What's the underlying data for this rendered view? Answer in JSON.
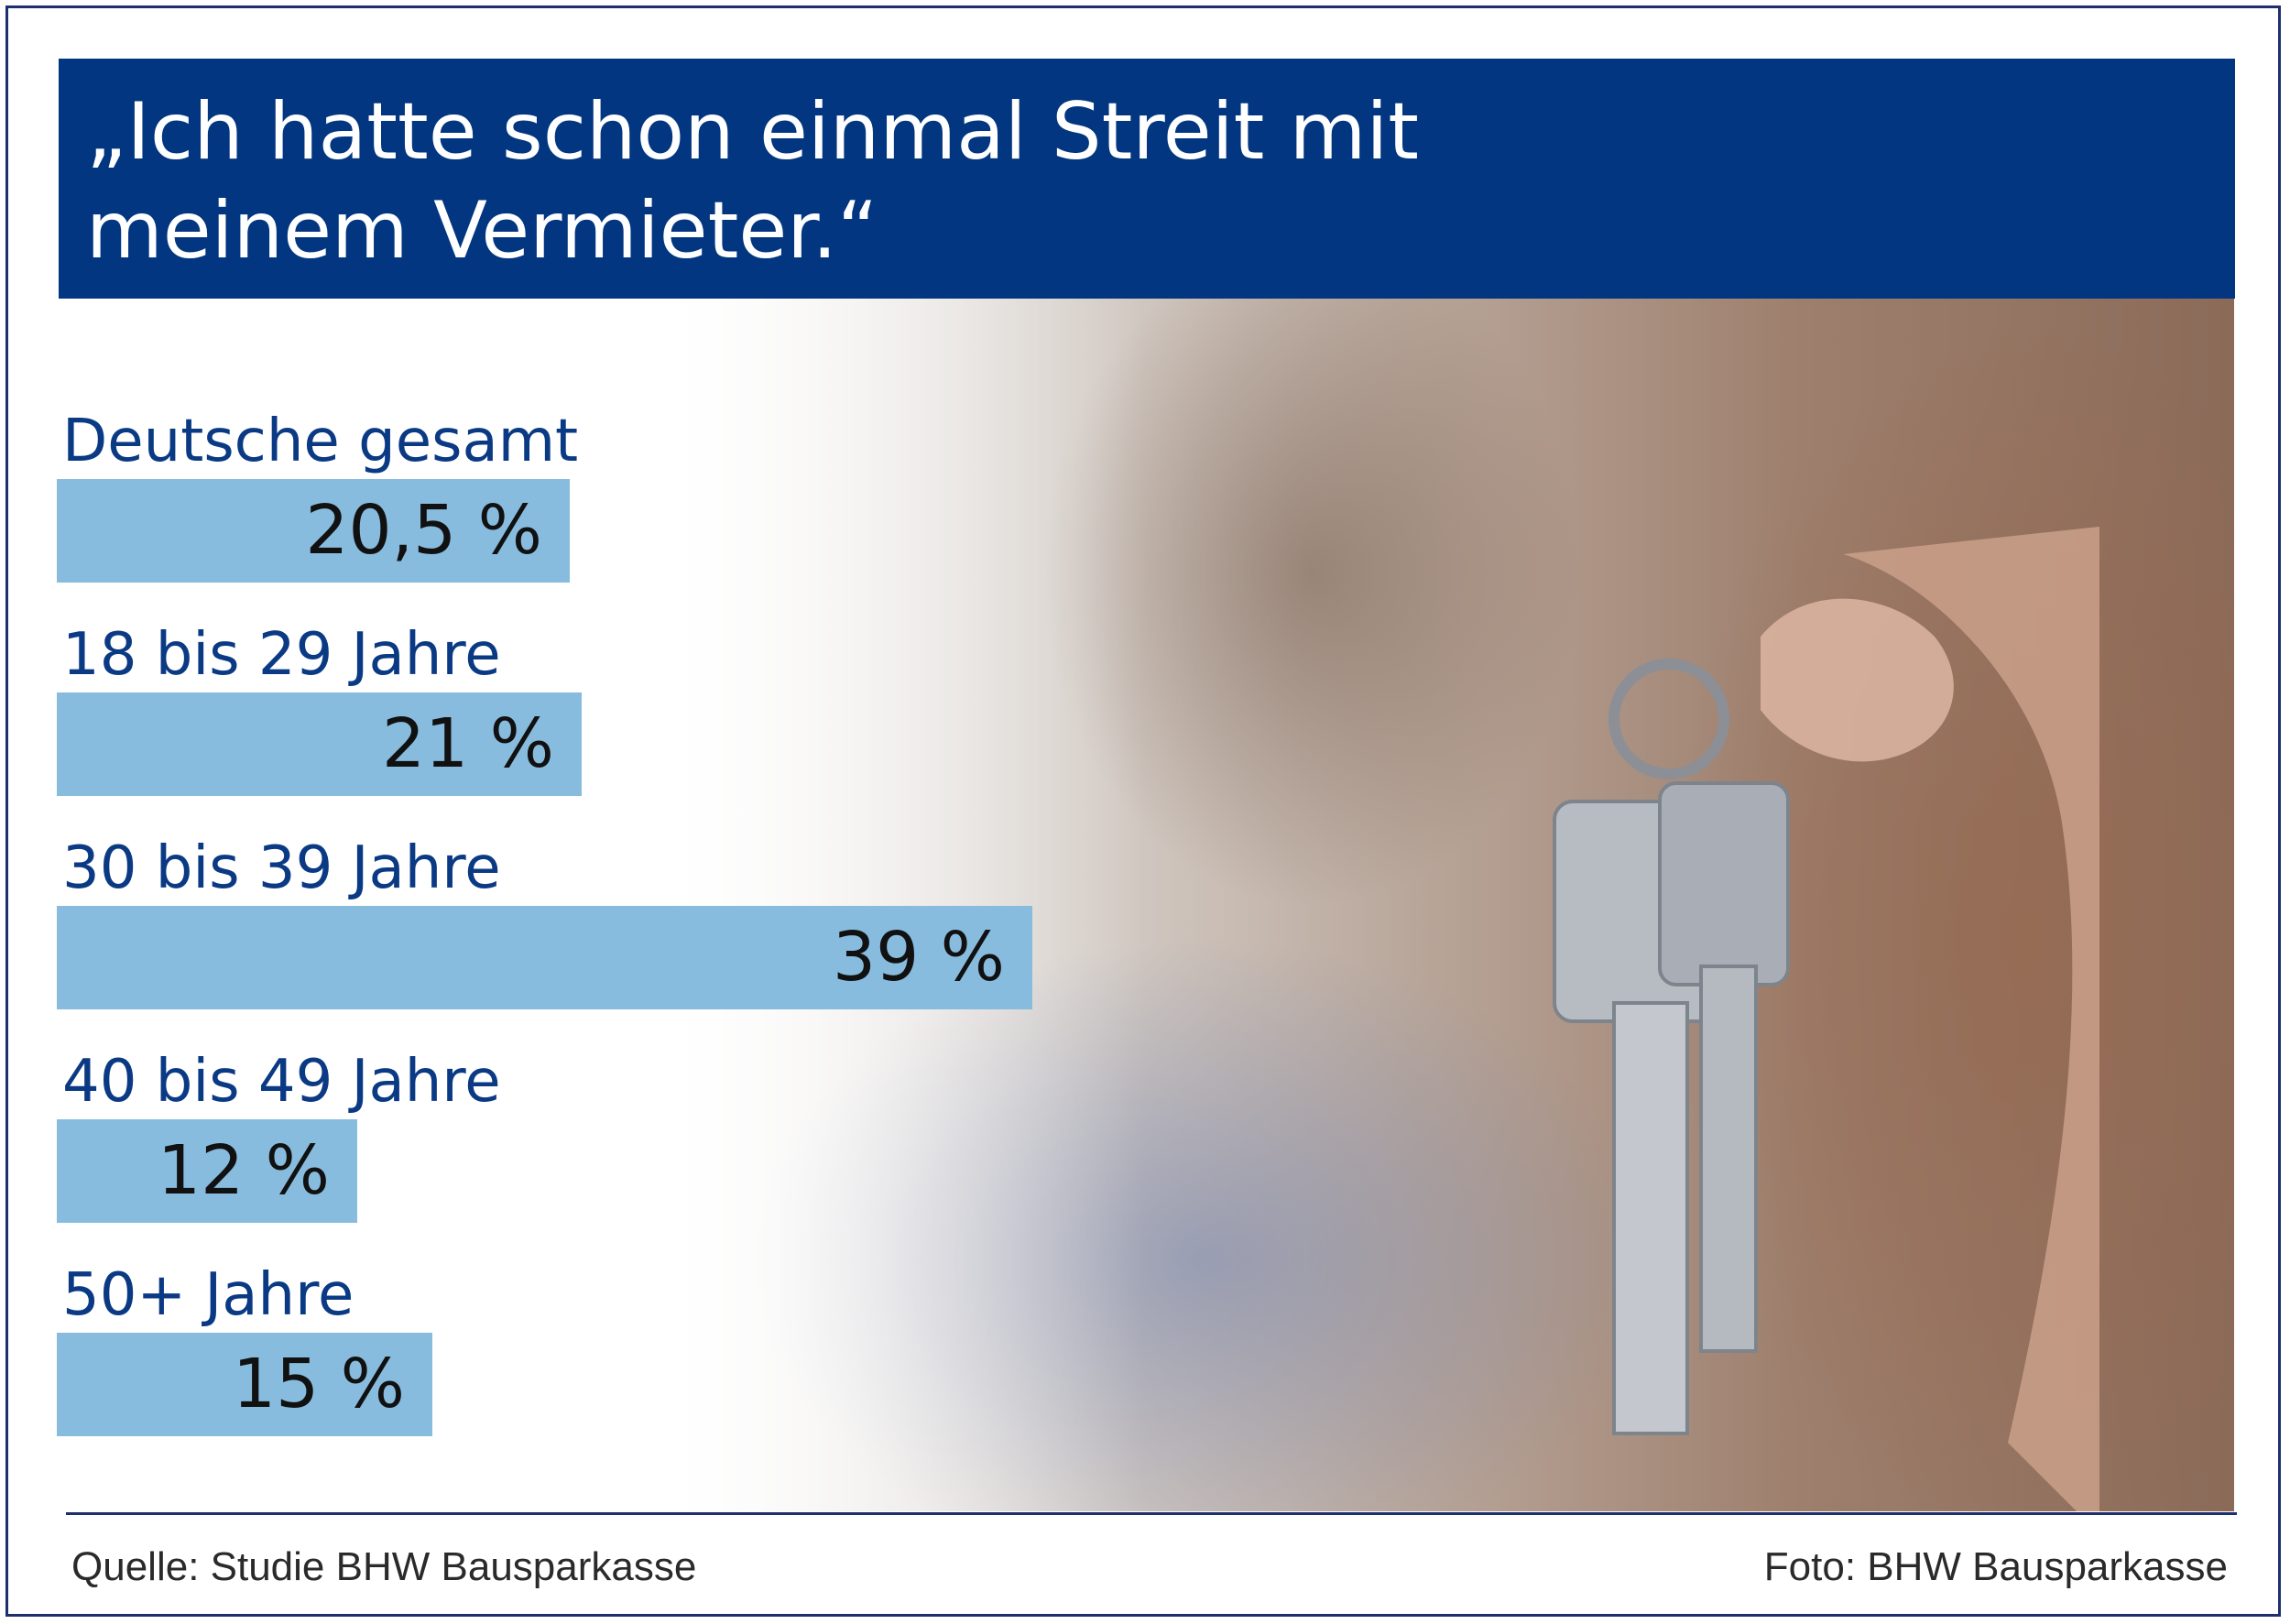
{
  "title": "„Ich hatte schon einmal Streit mit\nmeinem Vermieter.“",
  "chart_data": {
    "type": "bar",
    "orientation": "horizontal",
    "categories": [
      "Deutsche gesamt",
      "18 bis 29 Jahre",
      "30 bis 39 Jahre",
      "40 bis 49 Jahre",
      "50+ Jahre"
    ],
    "values": [
      20.5,
      21,
      39,
      12,
      15
    ],
    "value_labels": [
      "20,5 %",
      "21 %",
      "39 %",
      "12 %",
      "15 %"
    ],
    "unit": "%",
    "bar_color": "#88bcdf",
    "grid": false
  },
  "footer": {
    "source": "Quelle: Studie BHW Bausparkasse",
    "photo_credit": "Foto: BHW Bausparkasse"
  },
  "colors": {
    "title_background": "#023680",
    "label_color": "#0b3a84",
    "frame": "#1e2f6e"
  },
  "photo": {
    "icon": "keys-icon"
  }
}
